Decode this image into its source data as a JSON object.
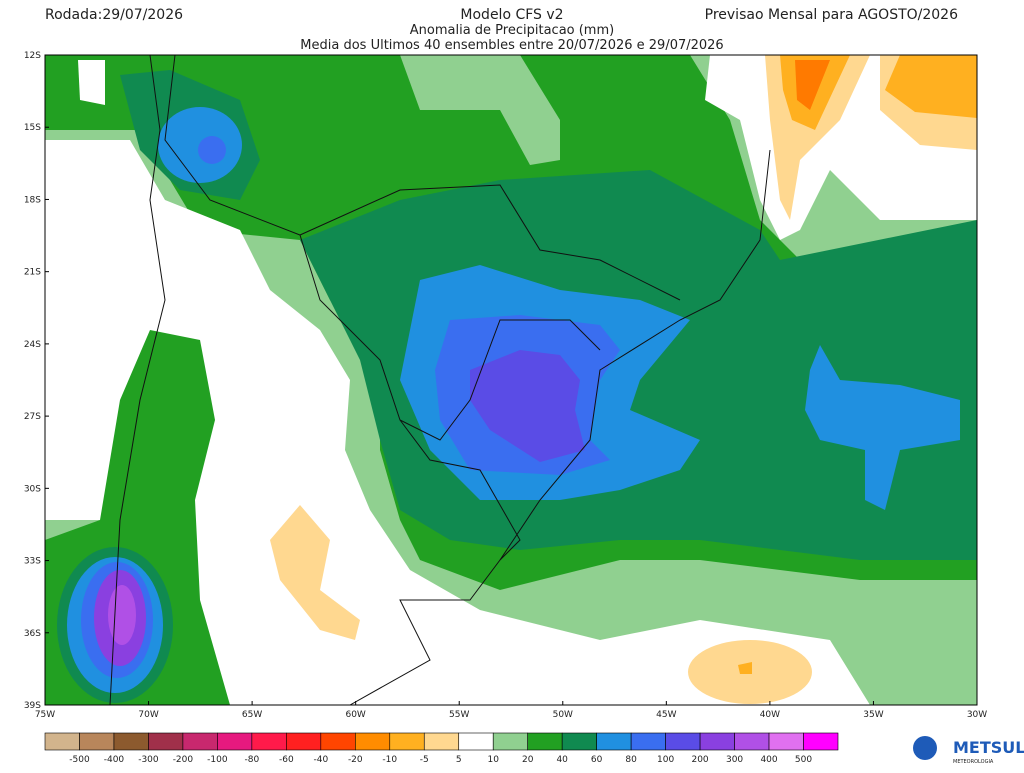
{
  "header": {
    "left": "Rodada:29/07/2026",
    "title": "Modelo CFS v2",
    "subtitle": "Anomalia de Precipitacao (mm)",
    "note": "Media dos Ultimos 40 ensembles entre 20/07/2026 e 29/07/2026",
    "right": "Previsao Mensal para AGOSTO/2026"
  },
  "map": {
    "lat_labels": [
      "12S",
      "15S",
      "18S",
      "21S",
      "24S",
      "27S",
      "30S",
      "33S",
      "36S",
      "39S"
    ],
    "lon_labels": [
      "75W",
      "70W",
      "65W",
      "60W",
      "55W",
      "50W",
      "45W",
      "40W",
      "35W",
      "30W"
    ]
  },
  "legend": {
    "colors": [
      "#d2b48c",
      "#b8865b",
      "#8c5a2e",
      "#a0304a",
      "#c8286e",
      "#e6197f",
      "#ff1a4a",
      "#ff2020",
      "#ff4500",
      "#ff8c00",
      "#ffb020",
      "#ffd890",
      "#ffffff",
      "#90d090",
      "#22a022",
      "#108a50",
      "#2090e0",
      "#3a6ef0",
      "#5a4ce6",
      "#8a40e0",
      "#b050e6",
      "#e070f0",
      "#ff00ff"
    ],
    "labels": [
      -500,
      -400,
      -300,
      -200,
      -100,
      -80,
      -60,
      -40,
      -20,
      -10,
      -5,
      5,
      10,
      20,
      40,
      60,
      80,
      100,
      200,
      300,
      400,
      500
    ]
  },
  "logo": {
    "name": "METSUL",
    "tagline": "METEOROLOGIA"
  }
}
